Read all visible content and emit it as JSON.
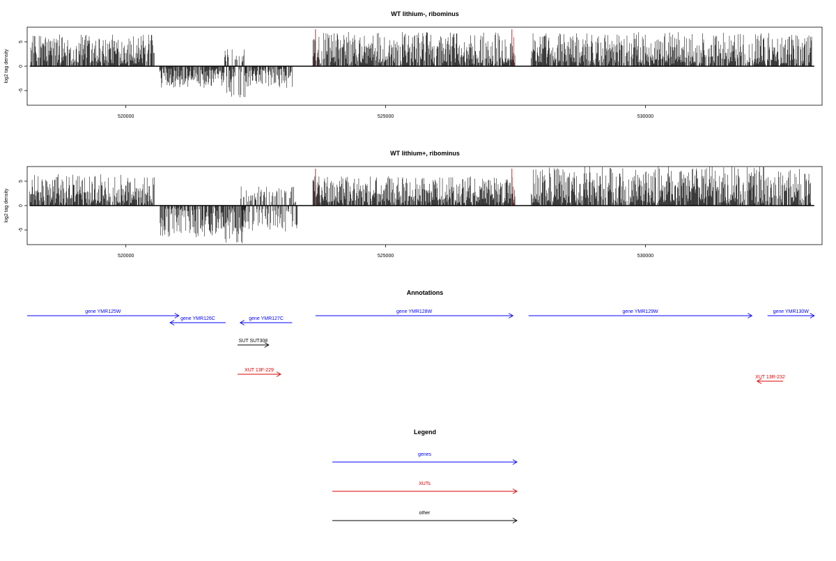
{
  "chart_data": [
    {
      "type": "bar",
      "title": "WT lithium-, ribominus",
      "xlabel": "",
      "ylabel": "log2 tag density",
      "xlim": [
        518100,
        533400
      ],
      "ylim": [
        -8,
        8
      ],
      "x_ticks": [
        520000,
        525000,
        530000
      ],
      "y_ticks": [
        -5,
        0,
        5
      ],
      "grid": false,
      "series": [
        {
          "values_per_segment": [
            {
              "x": [
                518150,
                520550
              ],
              "sign": "positive",
              "max": 6
            },
            {
              "x": [
                520650,
                521900
              ],
              "sign": "negative",
              "min": -4
            },
            {
              "x": [
                521900,
                522300
              ],
              "sign": "both",
              "max": 3,
              "min": -6
            },
            {
              "x": [
                522300,
                523200
              ],
              "sign": "negative",
              "min": -4
            },
            {
              "x": [
                523600,
                527500
              ],
              "sign": "positive",
              "max": 6.5
            },
            {
              "x": [
                527800,
                533200
              ],
              "sign": "positive",
              "max": 6.5
            }
          ]
        }
      ],
      "markers": [
        {
          "x": 523650,
          "color": "#dd0000"
        },
        {
          "x": 527430,
          "color": "#dd0000"
        }
      ]
    },
    {
      "type": "bar",
      "title": "WT lithium+, ribominus",
      "xlabel": "",
      "ylabel": "log2 tag density",
      "xlim": [
        518100,
        533400
      ],
      "ylim": [
        -8,
        8
      ],
      "x_ticks": [
        520000,
        525000,
        530000
      ],
      "y_ticks": [
        -5,
        0,
        5
      ],
      "grid": false,
      "series": [
        {
          "values_per_segment": [
            {
              "x": [
                518150,
                520550
              ],
              "sign": "positive",
              "max": 6
            },
            {
              "x": [
                520650,
                521900
              ],
              "sign": "negative",
              "min": -6
            },
            {
              "x": [
                521900,
                522300
              ],
              "sign": "negative",
              "min": -7.5
            },
            {
              "x": [
                522200,
                523300
              ],
              "sign": "both",
              "max": 3.5,
              "min": -5
            },
            {
              "x": [
                523600,
                527500
              ],
              "sign": "positive",
              "max": 5.5
            },
            {
              "x": [
                527800,
                533200
              ],
              "sign": "positive",
              "max": 7.5
            }
          ]
        }
      ],
      "markers": [
        {
          "x": 523650,
          "color": "#dd0000"
        },
        {
          "x": 527430,
          "color": "#dd0000"
        }
      ]
    }
  ],
  "annotations": {
    "title": "Annotations",
    "features": [
      {
        "label": "gene YMR125W",
        "start": 518100,
        "end": 521020,
        "strand": "+",
        "color": "#0000ff",
        "lane": 0
      },
      {
        "label": "gene YMR126C",
        "start": 521920,
        "end": 520850,
        "strand": "-",
        "color": "#0000ff",
        "lane": 1
      },
      {
        "label": "gene YMR127C",
        "start": 523200,
        "end": 522200,
        "strand": "-",
        "color": "#0000ff",
        "lane": 1
      },
      {
        "label": "gene YMR128W",
        "start": 523650,
        "end": 527450,
        "strand": "+",
        "color": "#0000ff",
        "lane": 0
      },
      {
        "label": "gene YMR129W",
        "start": 527750,
        "end": 532050,
        "strand": "+",
        "color": "#0000ff",
        "lane": 0
      },
      {
        "label": "gene YMR130W",
        "start": 532350,
        "end": 533250,
        "strand": "+",
        "color": "#0000ff",
        "lane": 0
      },
      {
        "label": "SUT SUT308",
        "start": 522150,
        "end": 522750,
        "strand": "+",
        "color": "#000000",
        "lane": 2
      },
      {
        "label": "XUT 13F-229",
        "start": 522150,
        "end": 522980,
        "strand": "+",
        "color": "#dd0000",
        "lane": 3
      },
      {
        "label": "XUT 13R-232",
        "start": 532650,
        "end": 532150,
        "strand": "-",
        "color": "#dd0000",
        "lane": 4
      }
    ]
  },
  "legend": {
    "title": "Legend",
    "items": [
      {
        "label": "genes",
        "color": "#0000ff"
      },
      {
        "label": "XUTs",
        "color": "#dd0000"
      },
      {
        "label": "other",
        "color": "#000000"
      }
    ]
  }
}
